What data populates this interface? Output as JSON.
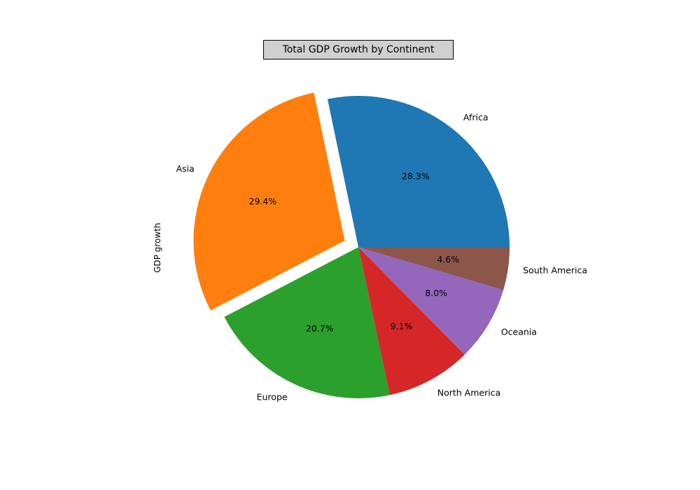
{
  "chart_data": {
    "type": "pie",
    "title": "Total GDP Growth by Continent",
    "ylabel": "GDP growth",
    "slices": [
      {
        "label": "Africa",
        "percent": 28.3,
        "pct_text": "28.3%",
        "color": "#1f77b4",
        "explode": 0
      },
      {
        "label": "Asia",
        "percent": 29.4,
        "pct_text": "29.4%",
        "color": "#ff7f0e",
        "explode": 0.1
      },
      {
        "label": "Europe",
        "percent": 20.7,
        "pct_text": "20.7%",
        "color": "#2ca02c",
        "explode": 0
      },
      {
        "label": "North America",
        "percent": 9.1,
        "pct_text": "9.1%",
        "color": "#d62728",
        "explode": 0
      },
      {
        "label": "Oceania",
        "percent": 8.0,
        "pct_text": "8.0%",
        "color": "#9467bd",
        "explode": 0
      },
      {
        "label": "South America",
        "percent": 4.6,
        "pct_text": "4.6%",
        "color": "#8c564b",
        "explode": 0
      }
    ],
    "start_angle_deg": 0,
    "direction": "counterclockwise"
  }
}
